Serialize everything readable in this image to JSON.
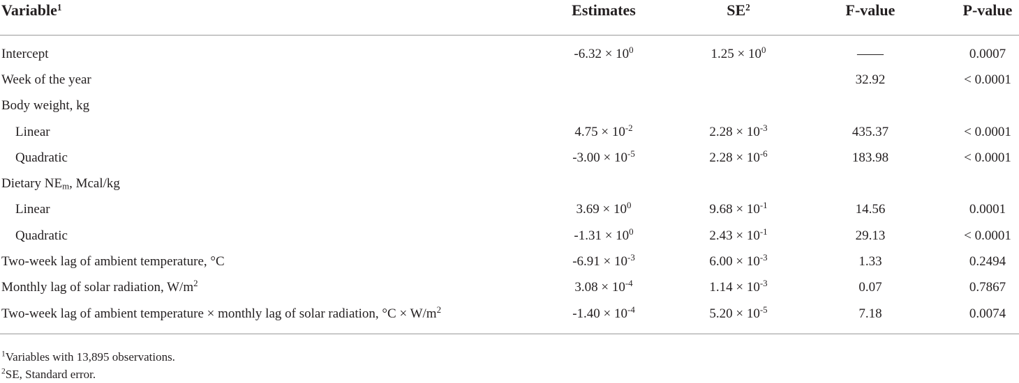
{
  "table": {
    "header": [
      [
        "Variable",
        {
          "sup": "1"
        }
      ],
      [
        "Estimates"
      ],
      [
        "SE",
        {
          "sup": "2"
        }
      ],
      [
        "F-value"
      ],
      [
        "P-value"
      ]
    ],
    "rows": [
      {
        "cells": [
          [
            "Intercept"
          ],
          [
            "-6.32 × 10",
            {
              "sup": "0"
            }
          ],
          [
            "1.25 × 10",
            {
              "sup": "0"
            }
          ],
          [
            "——"
          ],
          [
            "0.0007"
          ]
        ]
      },
      {
        "cells": [
          [
            "Week of the year"
          ],
          null,
          null,
          [
            "32.92"
          ],
          [
            "< 0.0001"
          ]
        ]
      },
      {
        "cells": [
          [
            "Body weight, kg"
          ],
          null,
          null,
          null,
          null
        ]
      },
      {
        "indent": true,
        "cells": [
          [
            "Linear"
          ],
          [
            "4.75 × 10",
            {
              "sup": "-2"
            }
          ],
          [
            "2.28 × 10",
            {
              "sup": "-3"
            }
          ],
          [
            "435.37"
          ],
          [
            "< 0.0001"
          ]
        ]
      },
      {
        "indent": true,
        "cells": [
          [
            "Quadratic"
          ],
          [
            "-3.00 × 10",
            {
              "sup": "-5"
            }
          ],
          [
            "2.28 × 10",
            {
              "sup": "-6"
            }
          ],
          [
            "183.98"
          ],
          [
            "< 0.0001"
          ]
        ]
      },
      {
        "cells": [
          [
            "Dietary NE",
            {
              "sub": "m"
            },
            ", Mcal/kg"
          ],
          null,
          null,
          null,
          null
        ]
      },
      {
        "indent": true,
        "cells": [
          [
            "Linear"
          ],
          [
            "3.69 × 10",
            {
              "sup": "0"
            }
          ],
          [
            "9.68 × 10",
            {
              "sup": "-1"
            }
          ],
          [
            "14.56"
          ],
          [
            "0.0001"
          ]
        ]
      },
      {
        "indent": true,
        "cells": [
          [
            "Quadratic"
          ],
          [
            "-1.31 × 10",
            {
              "sup": "0"
            }
          ],
          [
            "2.43 × 10",
            {
              "sup": "-1"
            }
          ],
          [
            "29.13"
          ],
          [
            "< 0.0001"
          ]
        ]
      },
      {
        "cells": [
          [
            "Two-week lag of ambient temperature, °C"
          ],
          [
            "-6.91 × 10",
            {
              "sup": "-3"
            }
          ],
          [
            "6.00 × 10",
            {
              "sup": "-3"
            }
          ],
          [
            "1.33"
          ],
          [
            "0.2494"
          ]
        ]
      },
      {
        "cells": [
          [
            "Monthly lag of solar radiation, W/m",
            {
              "sup": "2"
            }
          ],
          [
            "3.08 × 10",
            {
              "sup": "-4"
            }
          ],
          [
            "1.14 × 10",
            {
              "sup": "-3"
            }
          ],
          [
            "0.07"
          ],
          [
            "0.7867"
          ]
        ]
      },
      {
        "cells": [
          [
            "Two-week lag of ambient temperature × monthly lag of solar radiation, °C × W/m",
            {
              "sup": "2"
            }
          ],
          [
            "-1.40 × 10",
            {
              "sup": "-4"
            }
          ],
          [
            "5.20 × 10",
            {
              "sup": "-5"
            }
          ],
          [
            "7.18"
          ],
          [
            "0.0074"
          ]
        ]
      }
    ],
    "footnotes": [
      [
        {
          "sup": "1"
        },
        "Variables with 13,895 observations."
      ],
      [
        {
          "sup": "2"
        },
        "SE, Standard error."
      ]
    ]
  }
}
